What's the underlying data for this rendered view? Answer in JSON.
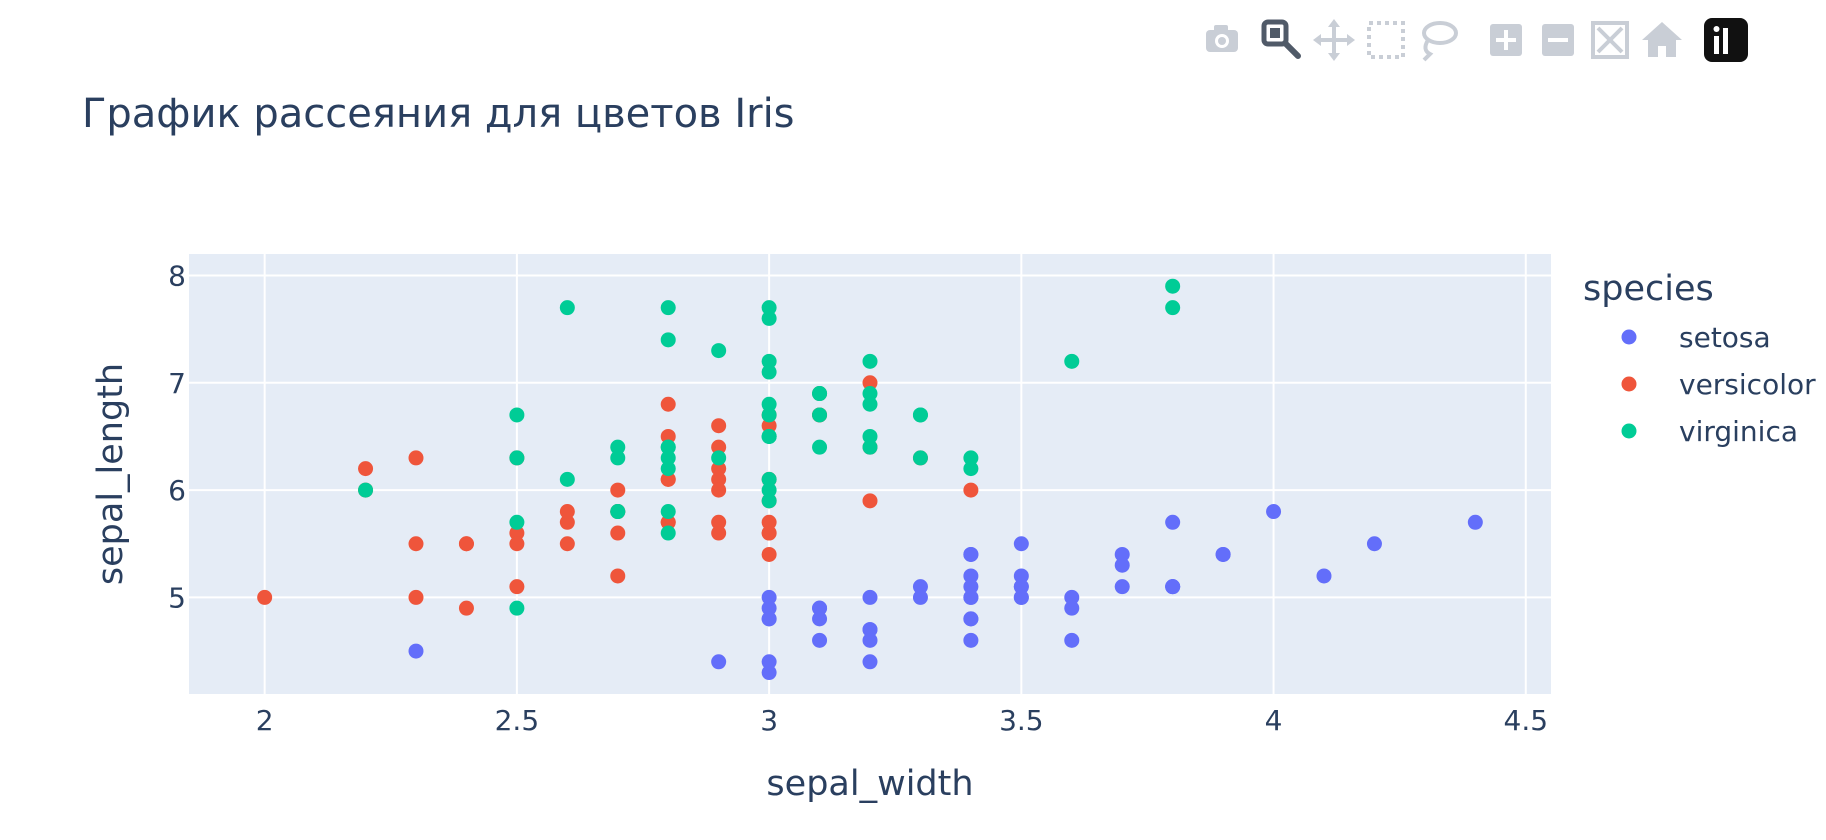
{
  "modebar": {
    "buttons": [
      {
        "name": "camera-icon",
        "title": "Download plot as a png"
      },
      {
        "name": "zoom-icon",
        "title": "Zoom"
      },
      {
        "name": "pan-icon",
        "title": "Pan"
      },
      {
        "name": "box-select-icon",
        "title": "Box Select"
      },
      {
        "name": "lasso-select-icon",
        "title": "Lasso Select"
      },
      {
        "name": "zoom-in-icon",
        "title": "Zoom in"
      },
      {
        "name": "zoom-out-icon",
        "title": "Zoom out"
      },
      {
        "name": "autoscale-icon",
        "title": "Autoscale"
      },
      {
        "name": "reset-axes-icon",
        "title": "Reset axes"
      },
      {
        "name": "plotly-logo-icon",
        "title": "Produced with Plotly"
      }
    ]
  },
  "chart_data": {
    "type": "scatter",
    "title": "График рассеяния для цветов Iris",
    "xlabel": "sepal_width",
    "ylabel": "sepal_length",
    "xlim": [
      1.85,
      4.55
    ],
    "ylim": [
      4.1,
      8.2
    ],
    "xticks": [
      2,
      2.5,
      3,
      3.5,
      4,
      4.5
    ],
    "xtick_labels": [
      "2",
      "2.5",
      "3",
      "3.5",
      "4",
      "4.5"
    ],
    "yticks": [
      5,
      6,
      7,
      8
    ],
    "ytick_labels": [
      "5",
      "6",
      "7",
      "8"
    ],
    "grid": true,
    "legend": {
      "title": "species",
      "placement": "right"
    },
    "series": [
      {
        "name": "setosa",
        "color": "#636efa",
        "points": [
          [
            3.5,
            5.1
          ],
          [
            3.0,
            4.9
          ],
          [
            3.2,
            4.7
          ],
          [
            3.1,
            4.6
          ],
          [
            3.6,
            5.0
          ],
          [
            3.9,
            5.4
          ],
          [
            3.4,
            4.6
          ],
          [
            3.4,
            5.0
          ],
          [
            2.9,
            4.4
          ],
          [
            3.1,
            4.9
          ],
          [
            3.7,
            5.4
          ],
          [
            3.4,
            4.8
          ],
          [
            3.0,
            4.8
          ],
          [
            3.0,
            4.3
          ],
          [
            4.0,
            5.8
          ],
          [
            4.4,
            5.7
          ],
          [
            3.9,
            5.4
          ],
          [
            3.5,
            5.1
          ],
          [
            3.8,
            5.7
          ],
          [
            3.8,
            5.1
          ],
          [
            3.4,
            5.4
          ],
          [
            3.7,
            5.1
          ],
          [
            3.6,
            4.6
          ],
          [
            3.3,
            5.1
          ],
          [
            3.4,
            4.8
          ],
          [
            3.0,
            5.0
          ],
          [
            3.4,
            5.0
          ],
          [
            3.5,
            5.2
          ],
          [
            3.4,
            5.2
          ],
          [
            3.2,
            4.7
          ],
          [
            3.1,
            4.8
          ],
          [
            3.4,
            5.4
          ],
          [
            4.1,
            5.2
          ],
          [
            4.2,
            5.5
          ],
          [
            3.1,
            4.9
          ],
          [
            3.2,
            5.0
          ],
          [
            3.5,
            5.5
          ],
          [
            3.6,
            4.9
          ],
          [
            3.0,
            4.4
          ],
          [
            3.4,
            5.1
          ],
          [
            3.5,
            5.0
          ],
          [
            2.3,
            4.5
          ],
          [
            3.2,
            4.4
          ],
          [
            3.5,
            5.0
          ],
          [
            3.8,
            5.1
          ],
          [
            3.0,
            4.8
          ],
          [
            3.8,
            5.1
          ],
          [
            3.2,
            4.6
          ],
          [
            3.7,
            5.3
          ],
          [
            3.3,
            5.0
          ]
        ]
      },
      {
        "name": "versicolor",
        "color": "#ef553b",
        "points": [
          [
            3.2,
            7.0
          ],
          [
            3.2,
            6.4
          ],
          [
            3.1,
            6.9
          ],
          [
            2.3,
            5.5
          ],
          [
            2.8,
            6.5
          ],
          [
            2.8,
            5.7
          ],
          [
            3.3,
            6.3
          ],
          [
            2.4,
            4.9
          ],
          [
            2.9,
            6.6
          ],
          [
            2.7,
            5.2
          ],
          [
            2.0,
            5.0
          ],
          [
            3.0,
            5.9
          ],
          [
            2.2,
            6.0
          ],
          [
            2.9,
            6.1
          ],
          [
            2.9,
            5.6
          ],
          [
            3.1,
            6.7
          ],
          [
            3.0,
            5.6
          ],
          [
            2.7,
            5.8
          ],
          [
            2.2,
            6.2
          ],
          [
            2.5,
            5.6
          ],
          [
            3.2,
            5.9
          ],
          [
            2.8,
            6.1
          ],
          [
            2.5,
            6.3
          ],
          [
            2.8,
            6.1
          ],
          [
            2.9,
            6.4
          ],
          [
            3.0,
            6.6
          ],
          [
            2.8,
            6.8
          ],
          [
            3.0,
            6.7
          ],
          [
            2.9,
            6.0
          ],
          [
            2.6,
            5.7
          ],
          [
            2.4,
            5.5
          ],
          [
            2.4,
            5.5
          ],
          [
            2.7,
            5.8
          ],
          [
            2.7,
            6.0
          ],
          [
            3.0,
            5.4
          ],
          [
            3.4,
            6.0
          ],
          [
            3.1,
            6.7
          ],
          [
            2.3,
            6.3
          ],
          [
            3.0,
            5.6
          ],
          [
            2.5,
            5.5
          ],
          [
            2.6,
            5.5
          ],
          [
            3.0,
            6.1
          ],
          [
            2.6,
            5.8
          ],
          [
            2.3,
            5.0
          ],
          [
            2.7,
            5.6
          ],
          [
            3.0,
            5.7
          ],
          [
            2.9,
            5.7
          ],
          [
            2.9,
            6.2
          ],
          [
            2.5,
            5.1
          ],
          [
            2.8,
            5.7
          ]
        ]
      },
      {
        "name": "virginica",
        "color": "#00cc96",
        "points": [
          [
            3.3,
            6.3
          ],
          [
            2.7,
            5.8
          ],
          [
            3.0,
            7.1
          ],
          [
            2.9,
            6.3
          ],
          [
            3.0,
            6.5
          ],
          [
            3.0,
            7.6
          ],
          [
            2.5,
            4.9
          ],
          [
            2.9,
            7.3
          ],
          [
            2.5,
            6.7
          ],
          [
            3.6,
            7.2
          ],
          [
            3.2,
            6.5
          ],
          [
            2.7,
            6.4
          ],
          [
            3.0,
            6.8
          ],
          [
            2.5,
            5.7
          ],
          [
            2.8,
            5.8
          ],
          [
            3.2,
            6.4
          ],
          [
            3.0,
            6.5
          ],
          [
            3.8,
            7.7
          ],
          [
            2.6,
            7.7
          ],
          [
            2.2,
            6.0
          ],
          [
            3.2,
            6.9
          ],
          [
            2.8,
            5.6
          ],
          [
            2.8,
            7.7
          ],
          [
            2.7,
            6.3
          ],
          [
            3.3,
            6.7
          ],
          [
            3.2,
            7.2
          ],
          [
            2.8,
            6.2
          ],
          [
            3.0,
            6.1
          ],
          [
            2.8,
            6.4
          ],
          [
            3.0,
            7.2
          ],
          [
            2.8,
            7.4
          ],
          [
            3.8,
            7.9
          ],
          [
            2.8,
            6.4
          ],
          [
            2.8,
            6.3
          ],
          [
            2.6,
            6.1
          ],
          [
            3.0,
            7.7
          ],
          [
            3.4,
            6.3
          ],
          [
            3.1,
            6.4
          ],
          [
            3.0,
            6.0
          ],
          [
            3.1,
            6.9
          ],
          [
            3.1,
            6.7
          ],
          [
            3.1,
            6.9
          ],
          [
            2.7,
            5.8
          ],
          [
            3.2,
            6.8
          ],
          [
            3.3,
            6.7
          ],
          [
            3.0,
            6.7
          ],
          [
            2.5,
            6.3
          ],
          [
            3.0,
            6.5
          ],
          [
            3.4,
            6.2
          ],
          [
            3.0,
            5.9
          ]
        ]
      }
    ]
  }
}
